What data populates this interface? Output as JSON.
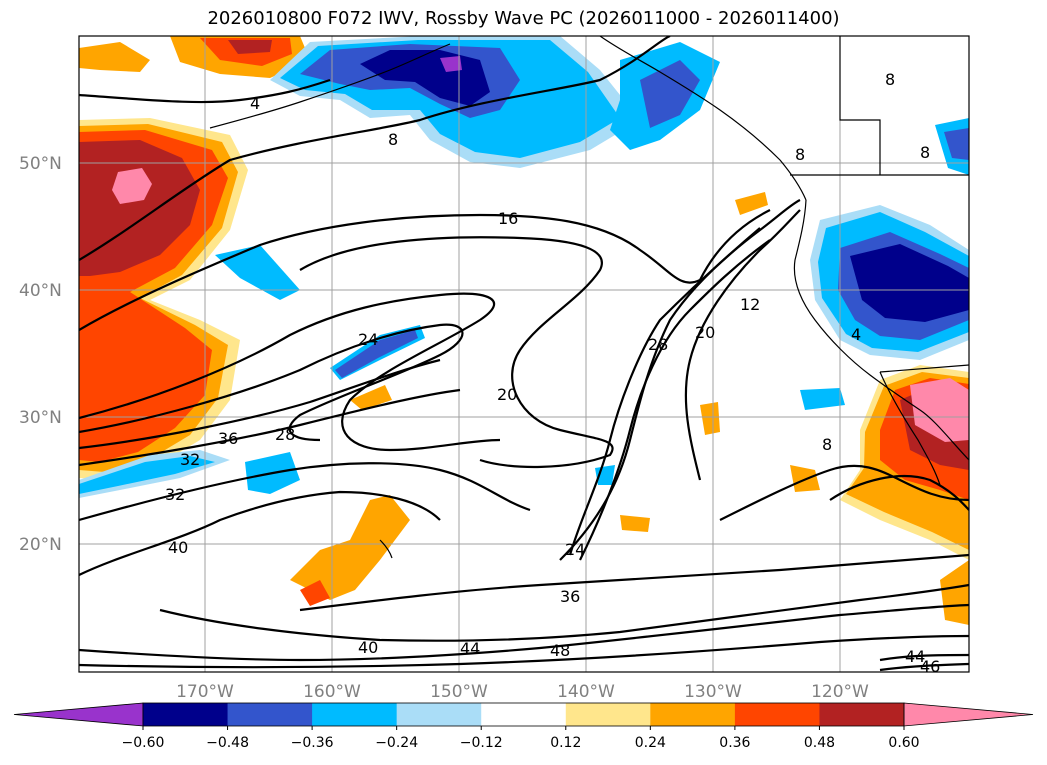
{
  "title": "2026010800 F072 IWV, Rossby Wave PC (2026011000 - 2026011400)",
  "lat_labels": [
    "50°N",
    "40°N",
    "30°N",
    "20°N"
  ],
  "lon_labels": [
    "170°W",
    "160°W",
    "150°W",
    "140°W",
    "130°W",
    "120°W"
  ],
  "contour_labels": [
    "4",
    "8",
    "16",
    "24",
    "28",
    "36",
    "32",
    "32",
    "40",
    "28",
    "20",
    "20",
    "12",
    "8",
    "8",
    "8",
    "8",
    "4",
    "24",
    "36",
    "40",
    "44",
    "48",
    "44",
    "46"
  ],
  "colorbar": {
    "ticks": [
      "−0.60",
      "−0.48",
      "−0.36",
      "−0.24",
      "−0.12",
      "0.12",
      "0.24",
      "0.36",
      "0.48",
      "0.60"
    ],
    "colors": [
      "#9933cc",
      "#00008b",
      "#3355cc",
      "#00bbff",
      "#aaddf7",
      "#ffffff",
      "#ffe68c",
      "#ffa500",
      "#ff4500",
      "#b22222",
      "#ff88aa"
    ]
  },
  "palette": {
    "purple": "#9933cc",
    "navy": "#00008b",
    "blue": "#3355cc",
    "cyan": "#00bbff",
    "lightblue": "#aaddf7",
    "yellow": "#ffe68c",
    "orange": "#ffa500",
    "redorange": "#ff4500",
    "darkred": "#b22222",
    "pink": "#ff88aa"
  }
}
